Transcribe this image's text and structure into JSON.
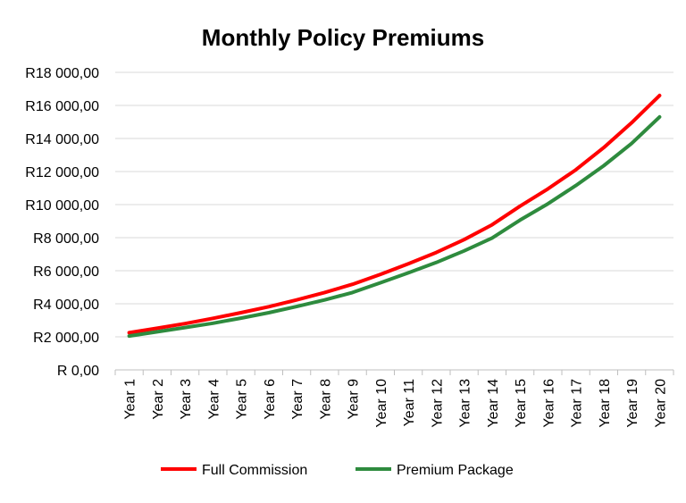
{
  "chart_data": {
    "type": "line",
    "title": "Monthly Policy Premiums",
    "xlabel": "",
    "ylabel": "",
    "ylim": [
      0,
      18000
    ],
    "yticks": [
      "R 0,00",
      "R2 000,00",
      "R4 000,00",
      "R6 000,00",
      "R8 000,00",
      "R10 000,00",
      "R12 000,00",
      "R14 000,00",
      "R16 000,00",
      "R18 000,00"
    ],
    "grid": true,
    "legend_position": "bottom",
    "categories": [
      "Year 1",
      "Year 2",
      "Year 3",
      "Year 4",
      "Year 5",
      "Year 6",
      "Year 7",
      "Year 8",
      "Year 9",
      "Year 10",
      "Year 11",
      "Year 12",
      "Year 13",
      "Year 14",
      "Year 15",
      "Year 16",
      "Year 17",
      "Year 18",
      "Year 19",
      "Year 20"
    ],
    "series": [
      {
        "name": "Full Commission",
        "color": "#ff0000",
        "values": [
          2250,
          2520,
          2800,
          3120,
          3460,
          3820,
          4230,
          4680,
          5180,
          5780,
          6420,
          7100,
          7880,
          8780,
          9900,
          10950,
          12100,
          13450,
          14950,
          16600
        ]
      },
      {
        "name": "Premium Package",
        "color": "#2e8b3e",
        "values": [
          2050,
          2300,
          2560,
          2820,
          3130,
          3460,
          3830,
          4230,
          4680,
          5270,
          5870,
          6500,
          7200,
          7980,
          9060,
          10050,
          11150,
          12350,
          13700,
          15300
        ]
      }
    ]
  }
}
